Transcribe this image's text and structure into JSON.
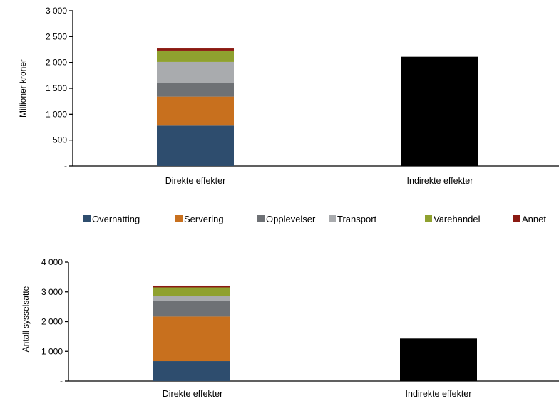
{
  "legend": {
    "items": [
      {
        "label": "Overnatting",
        "color": "#2E4D6E"
      },
      {
        "label": "Servering",
        "color": "#C8701E"
      },
      {
        "label": "Opplevelser",
        "color": "#6E7175"
      },
      {
        "label": "Transport",
        "color": "#A9ABAE"
      },
      {
        "label": "Varehandel",
        "color": "#8FA12F"
      },
      {
        "label": "Annet",
        "color": "#8B1A12"
      }
    ],
    "placement": "center, between the two charts"
  },
  "chart_data": [
    {
      "type": "bar",
      "stacked": true,
      "ylabel": "Millioner kroner",
      "ylim": [
        0,
        3000
      ],
      "yticks": [
        0,
        500,
        1000,
        1500,
        2000,
        2500,
        3000
      ],
      "ytick_labels": [
        "-",
        "500",
        "1 000",
        "1 500",
        "2 000",
        "2 500",
        "3 000"
      ],
      "categories": [
        "Direkte effekter",
        "Indirekte effekter"
      ],
      "grid": false,
      "series": [
        {
          "name": "Overnatting",
          "values": [
            780,
            0
          ]
        },
        {
          "name": "Servering",
          "values": [
            560,
            0
          ]
        },
        {
          "name": "Opplevelser",
          "values": [
            270,
            0
          ]
        },
        {
          "name": "Transport",
          "values": [
            400,
            0
          ]
        },
        {
          "name": "Varehandel",
          "values": [
            220,
            0
          ]
        },
        {
          "name": "Annet",
          "values": [
            40,
            0
          ]
        },
        {
          "values": [
            0,
            2110
          ],
          "color": "#000000"
        }
      ]
    },
    {
      "type": "bar",
      "stacked": true,
      "ylabel": "Antall sysselsatte",
      "ylim": [
        0,
        4000
      ],
      "yticks": [
        0,
        1000,
        2000,
        3000,
        4000
      ],
      "ytick_labels": [
        "-",
        "1 000",
        "2 000",
        "3 000",
        "4 000"
      ],
      "categories": [
        "Direkte effekter",
        "Indirekte effekter"
      ],
      "grid": false,
      "series": [
        {
          "name": "Overnatting",
          "values": [
            670,
            0
          ]
        },
        {
          "name": "Servering",
          "values": [
            1500,
            0
          ]
        },
        {
          "name": "Opplevelser",
          "values": [
            520,
            0
          ]
        },
        {
          "name": "Transport",
          "values": [
            160,
            0
          ]
        },
        {
          "name": "Varehandel",
          "values": [
            300,
            0
          ]
        },
        {
          "name": "Annet",
          "values": [
            60,
            0
          ]
        },
        {
          "values": [
            0,
            1430
          ],
          "color": "#000000"
        }
      ]
    }
  ]
}
